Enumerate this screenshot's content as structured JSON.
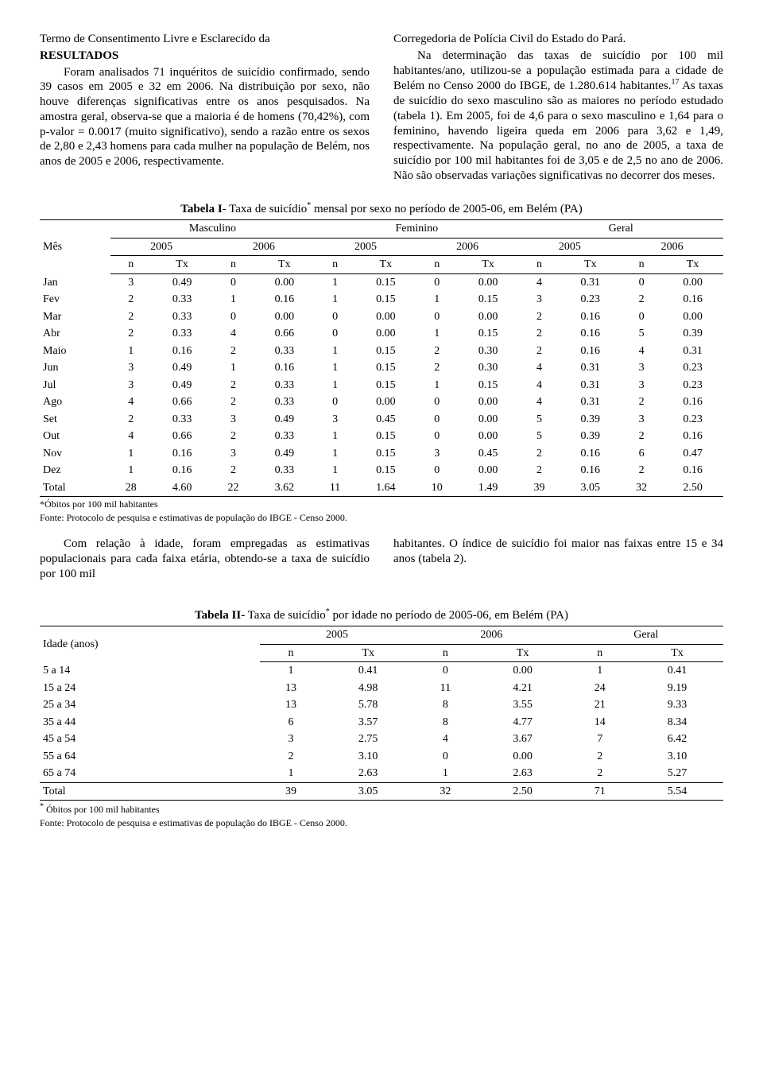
{
  "left_col": {
    "p1": "Termo de Consentimento Livre e Esclarecido da",
    "heading": "RESULTADOS",
    "p2": "Foram analisados 71 inquéritos de suicídio confirmado, sendo 39 casos em 2005 e 32 em 2006. Na distribuição por sexo, não houve diferenças significativas entre os anos pesquisados. Na amostra geral, observa-se que a maioria é de homens (70,42%), com p-valor = 0.0017 (muito significativo), sendo a razão entre os sexos de 2,80 e 2,43 homens para cada mulher na população de Belém, nos anos de 2005 e 2006, respectivamente."
  },
  "right_col": {
    "p1": "Corregedoria de Polícia Civil do Estado do Pará.",
    "p2": "Na determinação das taxas de suicídio por 100 mil habitantes/ano, utilizou-se a população estimada para a cidade de Belém no Censo 2000 do IBGE, de 1.280.614 habitantes.",
    "sup": "17",
    "p2b": " As taxas de suicídio do sexo masculino são as maiores no período estudado (tabela 1). Em 2005, foi de 4,6 para o sexo masculino e 1,64 para o feminino, havendo ligeira queda em 2006 para 3,62 e 1,49, respectivamente. Na população geral, no ano de 2005, a taxa de suicídio por 100 mil habitantes foi de 3,05 e de 2,5 no ano de 2006. Não são observadas variações significativas no decorrer dos meses."
  },
  "table1": {
    "title_a": "Tabela I",
    "title_b": "- Taxa de suicídio",
    "title_sup": "*",
    "title_c": " mensal por sexo no período de 2005-06, em Belém (PA)",
    "groups": [
      "Masculino",
      "Feminino",
      "Geral"
    ],
    "years": [
      "2005",
      "2006",
      "2005",
      "2006",
      "2005",
      "2006"
    ],
    "subheads": [
      "n",
      "Tx",
      "n",
      "Tx",
      "n",
      "Tx",
      "n",
      "Tx",
      "n",
      "Tx",
      "n",
      "Tx"
    ],
    "row_label_head": "Mês",
    "rows": [
      {
        "label": "Jan",
        "v": [
          "3",
          "0.49",
          "0",
          "0.00",
          "1",
          "0.15",
          "0",
          "0.00",
          "4",
          "0.31",
          "0",
          "0.00"
        ]
      },
      {
        "label": "Fev",
        "v": [
          "2",
          "0.33",
          "1",
          "0.16",
          "1",
          "0.15",
          "1",
          "0.15",
          "3",
          "0.23",
          "2",
          "0.16"
        ]
      },
      {
        "label": "Mar",
        "v": [
          "2",
          "0.33",
          "0",
          "0.00",
          "0",
          "0.00",
          "0",
          "0.00",
          "2",
          "0.16",
          "0",
          "0.00"
        ]
      },
      {
        "label": "Abr",
        "v": [
          "2",
          "0.33",
          "4",
          "0.66",
          "0",
          "0.00",
          "1",
          "0.15",
          "2",
          "0.16",
          "5",
          "0.39"
        ]
      },
      {
        "label": "Maio",
        "v": [
          "1",
          "0.16",
          "2",
          "0.33",
          "1",
          "0.15",
          "2",
          "0.30",
          "2",
          "0.16",
          "4",
          "0.31"
        ]
      },
      {
        "label": "Jun",
        "v": [
          "3",
          "0.49",
          "1",
          "0.16",
          "1",
          "0.15",
          "2",
          "0.30",
          "4",
          "0.31",
          "3",
          "0.23"
        ]
      },
      {
        "label": "Jul",
        "v": [
          "3",
          "0.49",
          "2",
          "0.33",
          "1",
          "0.15",
          "1",
          "0.15",
          "4",
          "0.31",
          "3",
          "0.23"
        ]
      },
      {
        "label": "Ago",
        "v": [
          "4",
          "0.66",
          "2",
          "0.33",
          "0",
          "0.00",
          "0",
          "0.00",
          "4",
          "0.31",
          "2",
          "0.16"
        ]
      },
      {
        "label": "Set",
        "v": [
          "2",
          "0.33",
          "3",
          "0.49",
          "3",
          "0.45",
          "0",
          "0.00",
          "5",
          "0.39",
          "3",
          "0.23"
        ]
      },
      {
        "label": "Out",
        "v": [
          "4",
          "0.66",
          "2",
          "0.33",
          "1",
          "0.15",
          "0",
          "0.00",
          "5",
          "0.39",
          "2",
          "0.16"
        ]
      },
      {
        "label": "Nov",
        "v": [
          "1",
          "0.16",
          "3",
          "0.49",
          "1",
          "0.15",
          "3",
          "0.45",
          "2",
          "0.16",
          "6",
          "0.47"
        ]
      },
      {
        "label": "Dez",
        "v": [
          "1",
          "0.16",
          "2",
          "0.33",
          "1",
          "0.15",
          "0",
          "0.00",
          "2",
          "0.16",
          "2",
          "0.16"
        ]
      }
    ],
    "total": {
      "label": "Total",
      "v": [
        "28",
        "4.60",
        "22",
        "3.62",
        "11",
        "1.64",
        "10",
        "1.49",
        "39",
        "3.05",
        "32",
        "2.50"
      ]
    },
    "footnote1": "*Óbitos por 100 mil habitantes",
    "footnote2": "Fonte: Protocolo de pesquisa e estimativas de população do IBGE - Censo 2000."
  },
  "mid_left": "Com relação à idade, foram empregadas as estimativas populacionais para cada faixa etária, obtendo-se a taxa de suicídio por 100 mil",
  "mid_right": "habitantes. O índice de suicídio foi maior nas faixas entre 15 e 34 anos (tabela 2).",
  "table2": {
    "title_a": "Tabela II-",
    "title_b": " Taxa de suicídio",
    "title_sup": "*",
    "title_c": " por idade no período de 2005-06, em Belém (PA)",
    "col_head": "Idade (anos)",
    "groups": [
      "2005",
      "2006",
      "Geral"
    ],
    "subheads": [
      "n",
      "Tx",
      "n",
      "Tx",
      "n",
      "Tx"
    ],
    "rows": [
      {
        "label": "5 a 14",
        "v": [
          "1",
          "0.41",
          "0",
          "0.00",
          "1",
          "0.41"
        ]
      },
      {
        "label": "15 a 24",
        "v": [
          "13",
          "4.98",
          "11",
          "4.21",
          "24",
          "9.19"
        ]
      },
      {
        "label": "25 a 34",
        "v": [
          "13",
          "5.78",
          "8",
          "3.55",
          "21",
          "9.33"
        ]
      },
      {
        "label": "35 a 44",
        "v": [
          "6",
          "3.57",
          "8",
          "4.77",
          "14",
          "8.34"
        ]
      },
      {
        "label": "45 a 54",
        "v": [
          "3",
          "2.75",
          "4",
          "3.67",
          "7",
          "6.42"
        ]
      },
      {
        "label": "55 a 64",
        "v": [
          "2",
          "3.10",
          "0",
          "0.00",
          "2",
          "3.10"
        ]
      },
      {
        "label": "65 a 74",
        "v": [
          "1",
          "2.63",
          "1",
          "2.63",
          "2",
          "5.27"
        ]
      }
    ],
    "total": {
      "label": "Total",
      "v": [
        "39",
        "3.05",
        "32",
        "2.50",
        "71",
        "5.54"
      ]
    },
    "footnote1_sup": "*",
    "footnote1": " Óbitos por 100 mil habitantes",
    "footnote2": "Fonte: Protocolo de pesquisa e estimativas de população do IBGE - Censo 2000."
  }
}
